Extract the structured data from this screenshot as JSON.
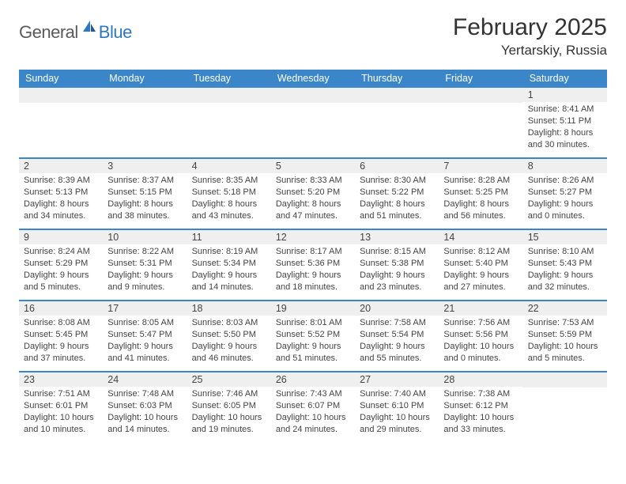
{
  "brand": {
    "text1": "General",
    "text2": "Blue"
  },
  "title": "February 2025",
  "location": "Yertarskiy, Russia",
  "colors": {
    "header_bg": "#3b86c8",
    "header_text": "#ffffff",
    "brand_gray": "#5a5a5a",
    "brand_blue": "#2f78c0",
    "stripe": "#efefef",
    "divider": "#3b86c8",
    "text": "#333333"
  },
  "dayNames": [
    "Sunday",
    "Monday",
    "Tuesday",
    "Wednesday",
    "Thursday",
    "Friday",
    "Saturday"
  ],
  "weeks": [
    [
      null,
      null,
      null,
      null,
      null,
      null,
      {
        "n": "1",
        "sunrise": "8:41 AM",
        "sunset": "5:11 PM",
        "daylight": "8 hours and 30 minutes."
      }
    ],
    [
      {
        "n": "2",
        "sunrise": "8:39 AM",
        "sunset": "5:13 PM",
        "daylight": "8 hours and 34 minutes."
      },
      {
        "n": "3",
        "sunrise": "8:37 AM",
        "sunset": "5:15 PM",
        "daylight": "8 hours and 38 minutes."
      },
      {
        "n": "4",
        "sunrise": "8:35 AM",
        "sunset": "5:18 PM",
        "daylight": "8 hours and 43 minutes."
      },
      {
        "n": "5",
        "sunrise": "8:33 AM",
        "sunset": "5:20 PM",
        "daylight": "8 hours and 47 minutes."
      },
      {
        "n": "6",
        "sunrise": "8:30 AM",
        "sunset": "5:22 PM",
        "daylight": "8 hours and 51 minutes."
      },
      {
        "n": "7",
        "sunrise": "8:28 AM",
        "sunset": "5:25 PM",
        "daylight": "8 hours and 56 minutes."
      },
      {
        "n": "8",
        "sunrise": "8:26 AM",
        "sunset": "5:27 PM",
        "daylight": "9 hours and 0 minutes."
      }
    ],
    [
      {
        "n": "9",
        "sunrise": "8:24 AM",
        "sunset": "5:29 PM",
        "daylight": "9 hours and 5 minutes."
      },
      {
        "n": "10",
        "sunrise": "8:22 AM",
        "sunset": "5:31 PM",
        "daylight": "9 hours and 9 minutes."
      },
      {
        "n": "11",
        "sunrise": "8:19 AM",
        "sunset": "5:34 PM",
        "daylight": "9 hours and 14 minutes."
      },
      {
        "n": "12",
        "sunrise": "8:17 AM",
        "sunset": "5:36 PM",
        "daylight": "9 hours and 18 minutes."
      },
      {
        "n": "13",
        "sunrise": "8:15 AM",
        "sunset": "5:38 PM",
        "daylight": "9 hours and 23 minutes."
      },
      {
        "n": "14",
        "sunrise": "8:12 AM",
        "sunset": "5:40 PM",
        "daylight": "9 hours and 27 minutes."
      },
      {
        "n": "15",
        "sunrise": "8:10 AM",
        "sunset": "5:43 PM",
        "daylight": "9 hours and 32 minutes."
      }
    ],
    [
      {
        "n": "16",
        "sunrise": "8:08 AM",
        "sunset": "5:45 PM",
        "daylight": "9 hours and 37 minutes."
      },
      {
        "n": "17",
        "sunrise": "8:05 AM",
        "sunset": "5:47 PM",
        "daylight": "9 hours and 41 minutes."
      },
      {
        "n": "18",
        "sunrise": "8:03 AM",
        "sunset": "5:50 PM",
        "daylight": "9 hours and 46 minutes."
      },
      {
        "n": "19",
        "sunrise": "8:01 AM",
        "sunset": "5:52 PM",
        "daylight": "9 hours and 51 minutes."
      },
      {
        "n": "20",
        "sunrise": "7:58 AM",
        "sunset": "5:54 PM",
        "daylight": "9 hours and 55 minutes."
      },
      {
        "n": "21",
        "sunrise": "7:56 AM",
        "sunset": "5:56 PM",
        "daylight": "10 hours and 0 minutes."
      },
      {
        "n": "22",
        "sunrise": "7:53 AM",
        "sunset": "5:59 PM",
        "daylight": "10 hours and 5 minutes."
      }
    ],
    [
      {
        "n": "23",
        "sunrise": "7:51 AM",
        "sunset": "6:01 PM",
        "daylight": "10 hours and 10 minutes."
      },
      {
        "n": "24",
        "sunrise": "7:48 AM",
        "sunset": "6:03 PM",
        "daylight": "10 hours and 14 minutes."
      },
      {
        "n": "25",
        "sunrise": "7:46 AM",
        "sunset": "6:05 PM",
        "daylight": "10 hours and 19 minutes."
      },
      {
        "n": "26",
        "sunrise": "7:43 AM",
        "sunset": "6:07 PM",
        "daylight": "10 hours and 24 minutes."
      },
      {
        "n": "27",
        "sunrise": "7:40 AM",
        "sunset": "6:10 PM",
        "daylight": "10 hours and 29 minutes."
      },
      {
        "n": "28",
        "sunrise": "7:38 AM",
        "sunset": "6:12 PM",
        "daylight": "10 hours and 33 minutes."
      },
      null
    ]
  ],
  "labels": {
    "sunrise": "Sunrise:",
    "sunset": "Sunset:",
    "daylight": "Daylight:"
  }
}
